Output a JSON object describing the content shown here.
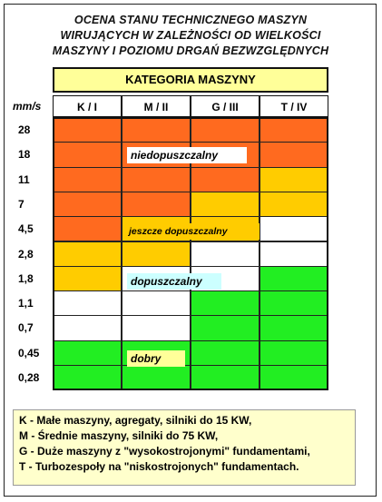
{
  "title": [
    "OCENA STANU TECHNICZNEGO MASZYN",
    "WIRUJĄCYCH W ZALEŻNOŚCI OD WIELKOŚCI",
    "MASZYNY I POZIOMU DRGAŃ BEZWZGLĘDNYCH"
  ],
  "category_header": "KATEGORIA MASZYNY",
  "unit": "mm/s",
  "columns": [
    "K / I",
    "M / II",
    "G / III",
    "T / IV"
  ],
  "rows": [
    "28",
    "18",
    "11",
    "7",
    "4,5",
    "2,8",
    "1,8",
    "1,1",
    "0,7",
    "0,45",
    "0,28"
  ],
  "zones": {
    "niedopuszczalny": "niedopuszczalny",
    "jeszcze": "jeszcze dopuszczalny",
    "dopuszczalny": "dopuszczalny",
    "dobry": "dobry"
  },
  "colors": {
    "niedopuszczalny": "#ff6a1f",
    "jeszcze": "#ffcc00",
    "dopuszczalny": "#ffffff",
    "dobry": "#22ee22"
  },
  "matrix": [
    [
      "N",
      "N",
      "N",
      "N"
    ],
    [
      "N",
      "N",
      "N",
      "N"
    ],
    [
      "N",
      "N",
      "N",
      "J"
    ],
    [
      "N",
      "N",
      "J",
      "J"
    ],
    [
      "N",
      "J",
      "J",
      "D"
    ],
    [
      "J",
      "J",
      "D",
      "D"
    ],
    [
      "J",
      "D",
      "D",
      "G"
    ],
    [
      "D",
      "D",
      "G",
      "G"
    ],
    [
      "D",
      "D",
      "G",
      "G"
    ],
    [
      "G",
      "G",
      "G",
      "G"
    ],
    [
      "G",
      "G",
      "G",
      "G"
    ]
  ],
  "legend": [
    "K -  Małe maszyny,  agregaty, silniki do 15 KW,",
    "M - Średnie maszyny,  silniki do 75 KW,",
    "G -  Duże maszyny z \"wysokostrojonymi\"  fundamentami,",
    "T - Turbozespoły na \"niskostrojonych\"  fundamentach."
  ]
}
